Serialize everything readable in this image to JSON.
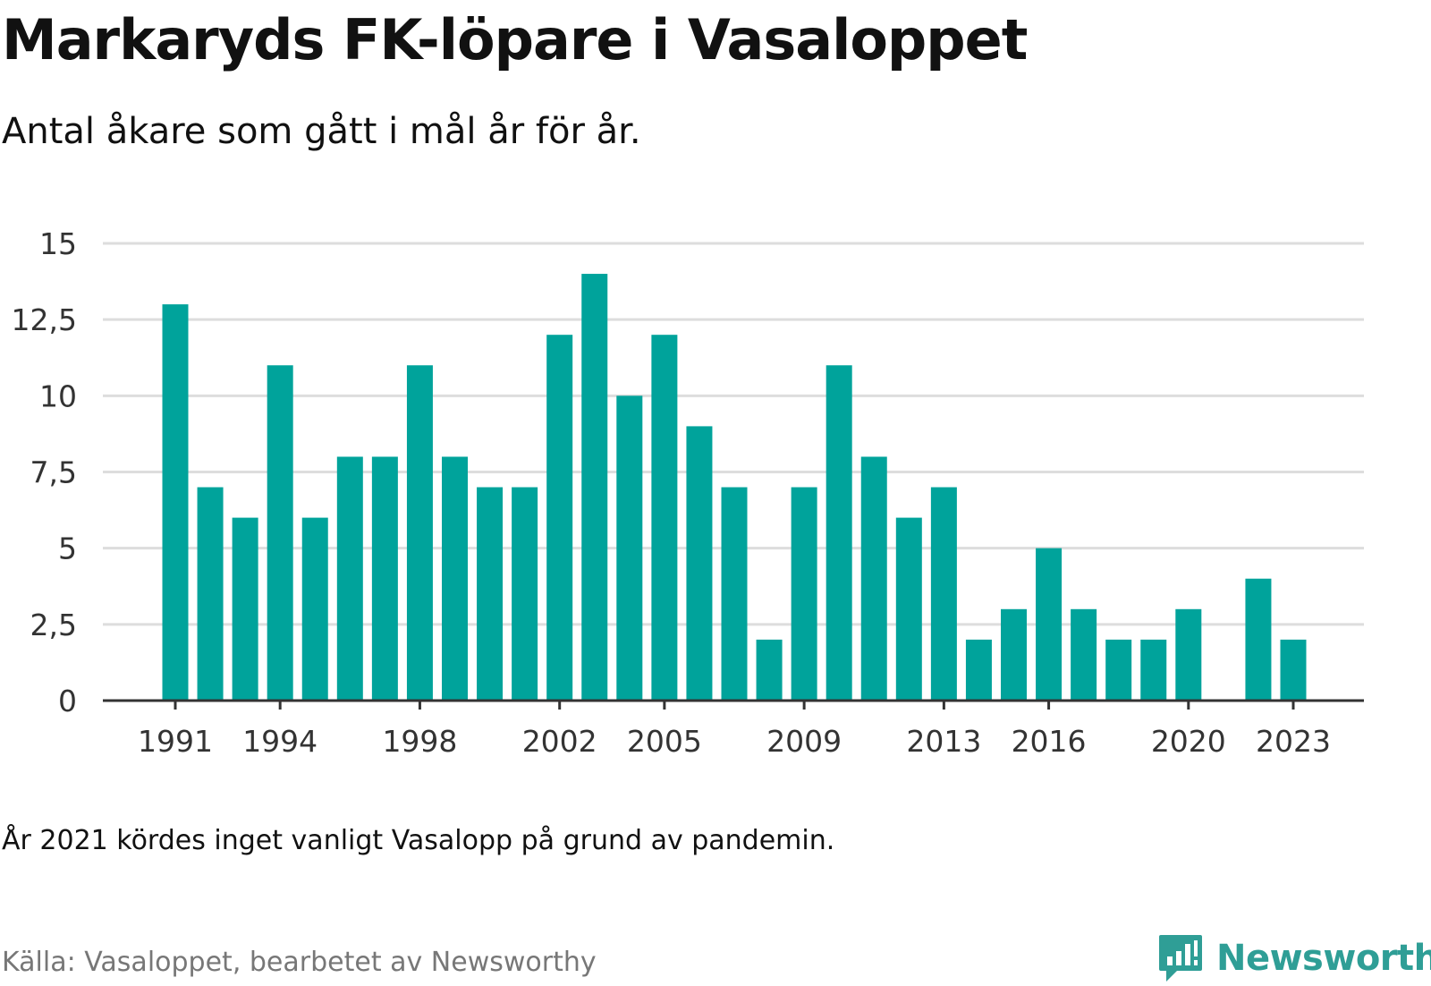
{
  "title": "Markaryds FK-löpare i Vasaloppet",
  "subtitle": "Antal åkare som gått i mål år för år.",
  "note": "År 2021 kördes inget vanligt Vasalopp på grund av pandemin.",
  "source": "Källa: Vasaloppet, bearbetet av Newsworthy",
  "brand": {
    "name": "Newsworthy",
    "icon": "newsworthy-logo-icon"
  },
  "colors": {
    "bar": "#00a39b",
    "grid": "#dddddd",
    "axis": "#333333",
    "brand": "#2f9e96",
    "label": "#333333"
  },
  "chart_data": {
    "type": "bar",
    "title": "Markaryds FK-löpare i Vasaloppet",
    "subtitle": "Antal åkare som gått i mål år för år.",
    "xlabel": "",
    "ylabel": "",
    "ylim": [
      0,
      15
    ],
    "yticks": [
      0,
      2.5,
      5,
      7.5,
      10,
      12.5,
      15
    ],
    "ytick_labels": [
      "0",
      "2,5",
      "5",
      "7,5",
      "10",
      "12,5",
      "15"
    ],
    "xtick_labels": [
      "1991",
      "1994",
      "1998",
      "2002",
      "2005",
      "2009",
      "2013",
      "2016",
      "2020",
      "2023"
    ],
    "grid": true,
    "categories": [
      1991,
      1992,
      1993,
      1994,
      1995,
      1996,
      1997,
      1998,
      1999,
      2000,
      2001,
      2002,
      2003,
      2004,
      2005,
      2006,
      2007,
      2008,
      2009,
      2010,
      2011,
      2012,
      2013,
      2014,
      2015,
      2016,
      2017,
      2018,
      2019,
      2020,
      2021,
      2022,
      2023
    ],
    "values": [
      13,
      7,
      6,
      11,
      6,
      8,
      8,
      11,
      8,
      7,
      7,
      12,
      14,
      10,
      12,
      9,
      7,
      2,
      7,
      11,
      8,
      6,
      7,
      2,
      3,
      5,
      3,
      2,
      2,
      3,
      null,
      4,
      2
    ]
  }
}
